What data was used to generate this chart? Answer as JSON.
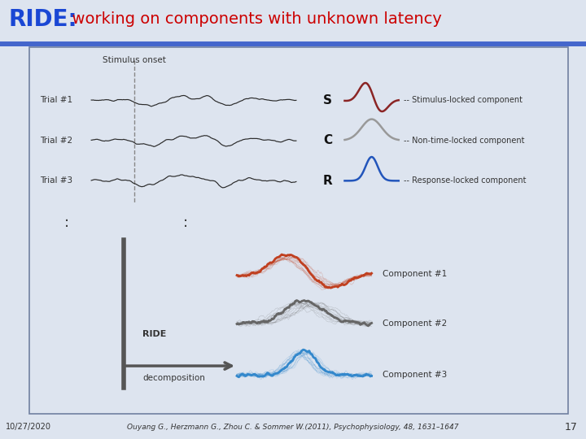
{
  "title_ride": "RIDE:",
  "title_rest": "  working on components with unknown latency",
  "title_ride_color": "#1a47d4",
  "title_rest_color": "#cc0000",
  "bg_slide_color": "#dde4ef",
  "bg_box_color": "#f5f5f8",
  "box_border_color": "#7080a0",
  "footer_date": "10/27/2020",
  "footer_ref": "Ouyang G., Herzmann G., Zhou C. & Sommer W.(2011), Psychophysiology, 48, 1631–1647",
  "footer_page": "17",
  "stimulus_onset_label": "Stimulus onset",
  "trial_labels": [
    "Trial #1",
    "Trial #2",
    "Trial #3"
  ],
  "legend_letters": [
    "S",
    "C",
    "R"
  ],
  "legend_colors": [
    "#8b2525",
    "#999999",
    "#2255bb"
  ],
  "legend_texts": [
    "-- Stimulus-locked component",
    "-- Non-time-locked component",
    "-- Response-locked component"
  ],
  "component_labels": [
    "Component #1",
    "Component #2",
    "Component #3"
  ],
  "component_colors": [
    "#c04020",
    "#666666",
    "#3388cc"
  ],
  "ride_label": "RIDE",
  "decomp_label": "decomposition"
}
